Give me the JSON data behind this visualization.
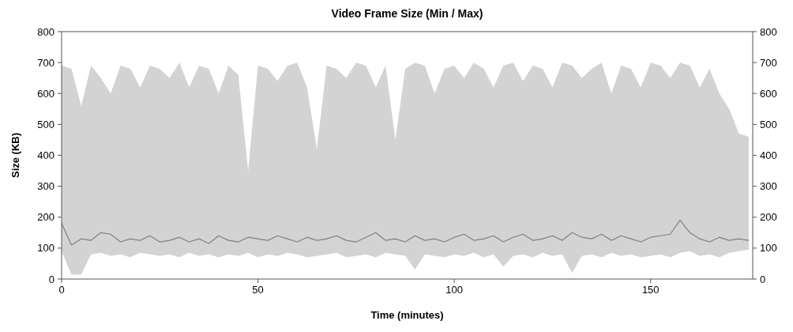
{
  "chart_data": {
    "type": "line",
    "title": "Video Frame Size (Min / Max)",
    "xlabel": "Time (minutes)",
    "ylabel": "Size (KB)",
    "xlim": [
      0,
      176
    ],
    "xticks": [
      0,
      50,
      100,
      150
    ],
    "ylim": [
      0,
      800
    ],
    "yticks": [
      0,
      100,
      200,
      300,
      400,
      500,
      600,
      700,
      800
    ],
    "y2lim": [
      0,
      800
    ],
    "y2ticks": [
      0,
      100,
      200,
      300,
      400,
      500,
      600,
      700,
      800
    ],
    "x": [
      0,
      2.5,
      5,
      7.5,
      10,
      12.5,
      15,
      17.5,
      20,
      22.5,
      25,
      27.5,
      30,
      32.5,
      35,
      37.5,
      40,
      42.5,
      45,
      47.5,
      50,
      52.5,
      55,
      57.5,
      60,
      62.5,
      65,
      67.5,
      70,
      72.5,
      75,
      77.5,
      80,
      82.5,
      85,
      87.5,
      90,
      92.5,
      95,
      97.5,
      100,
      102.5,
      105,
      107.5,
      110,
      112.5,
      115,
      117.5,
      120,
      122.5,
      125,
      127.5,
      130,
      132.5,
      135,
      137.5,
      140,
      142.5,
      145,
      147.5,
      150,
      152.5,
      155,
      157.5,
      160,
      162.5,
      165,
      167.5,
      170,
      172.5,
      175
    ],
    "series": [
      {
        "color": "#808080",
        "values": [
          180,
          110,
          130,
          125,
          150,
          145,
          120,
          130,
          125,
          140,
          120,
          125,
          135,
          120,
          130,
          115,
          140,
          125,
          120,
          135,
          130,
          125,
          140,
          130,
          120,
          135,
          125,
          130,
          140,
          125,
          120,
          135,
          150,
          125,
          130,
          120,
          140,
          125,
          130,
          120,
          135,
          145,
          125,
          130,
          140,
          120,
          135,
          145,
          125,
          130,
          140,
          125,
          150,
          135,
          130,
          145,
          125,
          140,
          130,
          120,
          135,
          140,
          145,
          190,
          150,
          130,
          120,
          135,
          125,
          130,
          125
        ],
        "upper": [
          690,
          680,
          560,
          690,
          650,
          600,
          690,
          680,
          620,
          690,
          680,
          650,
          700,
          620,
          690,
          680,
          600,
          690,
          660,
          350,
          690,
          680,
          640,
          690,
          700,
          620,
          420,
          690,
          680,
          650,
          700,
          690,
          620,
          690,
          450,
          680,
          700,
          690,
          600,
          680,
          690,
          650,
          700,
          680,
          620,
          690,
          700,
          640,
          690,
          680,
          620,
          700,
          690,
          650,
          680,
          700,
          600,
          690,
          680,
          620,
          700,
          690,
          650,
          700,
          690,
          620,
          680,
          600,
          550,
          470,
          460
        ],
        "lower": [
          90,
          15,
          15,
          80,
          85,
          75,
          80,
          70,
          85,
          80,
          75,
          80,
          70,
          85,
          75,
          80,
          70,
          80,
          75,
          85,
          70,
          80,
          75,
          85,
          80,
          70,
          75,
          80,
          85,
          70,
          75,
          80,
          70,
          85,
          80,
          75,
          30,
          80,
          75,
          70,
          80,
          75,
          85,
          70,
          80,
          40,
          75,
          80,
          70,
          85,
          75,
          80,
          20,
          75,
          80,
          70,
          85,
          75,
          80,
          70,
          75,
          80,
          70,
          85,
          90,
          75,
          80,
          70,
          85,
          90,
          95
        ]
      }
    ]
  }
}
